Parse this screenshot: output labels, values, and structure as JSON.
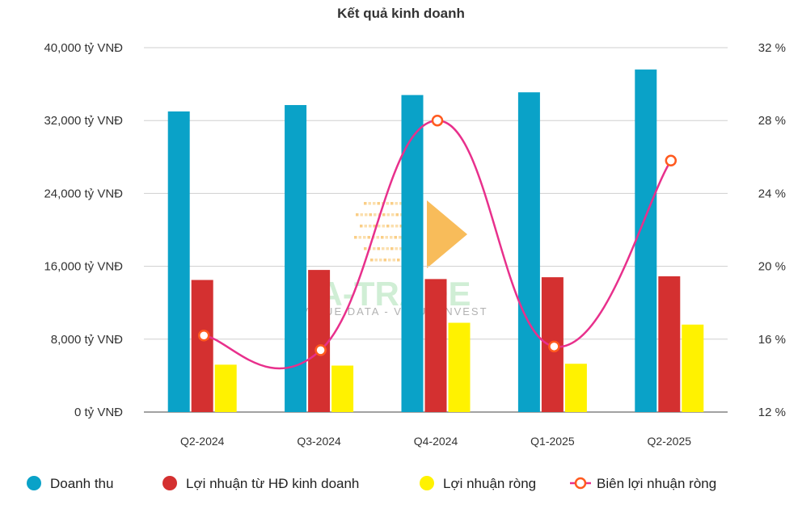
{
  "chart_data": {
    "type": "bar+line",
    "title": "Kết quả kinh doanh",
    "categories": [
      "Q2-2024",
      "Q3-2024",
      "Q4-2024",
      "Q1-2025",
      "Q2-2025"
    ],
    "series": [
      {
        "name": "Doanh thu",
        "type": "bar",
        "axis": "left",
        "color": "#0aa2c8",
        "values": [
          33000,
          33700,
          34800,
          35100,
          37600
        ]
      },
      {
        "name": "Lợi nhuận từ HĐ kinh doanh",
        "type": "bar",
        "axis": "left",
        "color": "#d43030",
        "values": [
          14500,
          15600,
          14600,
          14800,
          14900
        ]
      },
      {
        "name": "Lợi nhuận ròng",
        "type": "bar",
        "axis": "left",
        "color": "#fff200",
        "values": [
          5200,
          5100,
          9800,
          5300,
          9600
        ]
      },
      {
        "name": "Biên lợi nhuận ròng",
        "type": "line",
        "axis": "right",
        "color": "#e8308c",
        "marker_color": "#ff5a1f",
        "values": [
          16.2,
          15.4,
          28.0,
          15.6,
          25.8
        ]
      }
    ],
    "y_left": {
      "ticks": [
        "0 tỷ VNĐ",
        "8,000 tỷ VNĐ",
        "16,000 tỷ VNĐ",
        "24,000 tỷ VNĐ",
        "32,000 tỷ VNĐ",
        "40,000 tỷ VNĐ"
      ],
      "ylim": [
        0,
        40000
      ]
    },
    "y_right": {
      "ticks": [
        "12 %",
        "16 %",
        "20 %",
        "24 %",
        "28 %",
        "32 %"
      ],
      "ylim": [
        12,
        32
      ]
    },
    "grid": true,
    "legend_position": "bottom"
  },
  "watermark": {
    "brand": "A-TRADE",
    "tagline": "VALUE DATA - VALUE INVEST"
  }
}
